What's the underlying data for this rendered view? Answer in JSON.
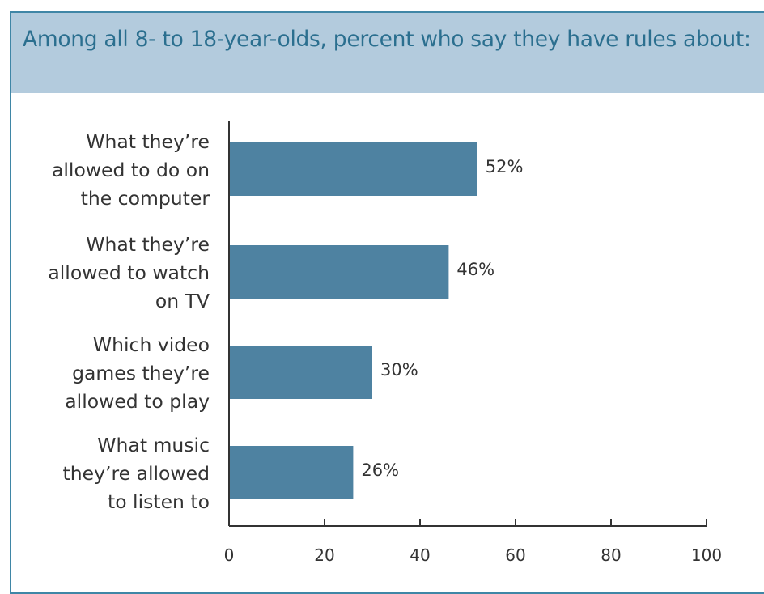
{
  "title": "Among all 8- to 18-year-olds, percent who say they have rules about:",
  "chart_data": {
    "type": "bar",
    "orientation": "horizontal",
    "categories": [
      [
        "What they’re",
        "allowed to do on",
        "the computer"
      ],
      [
        "What they’re",
        "allowed to watch",
        "on TV"
      ],
      [
        "Which video",
        "games they’re",
        "allowed to play"
      ],
      [
        "What music",
        "they’re allowed",
        "to listen to"
      ]
    ],
    "values": [
      52,
      46,
      30,
      26
    ],
    "value_labels": [
      "52%",
      "46%",
      "30%",
      "26%"
    ],
    "xlim": [
      0,
      100
    ],
    "xticks": [
      0,
      20,
      40,
      60,
      80,
      100
    ],
    "xtick_labels": [
      "0",
      "20",
      "40",
      "60",
      "80",
      "100"
    ],
    "grid": false,
    "bar_color": "#4e82a1"
  },
  "colors": {
    "border": "#3f86a6",
    "title_band": "#b3cbdd",
    "title_text": "#2b6f8f",
    "axis": "#333333",
    "label_text": "#333333"
  }
}
